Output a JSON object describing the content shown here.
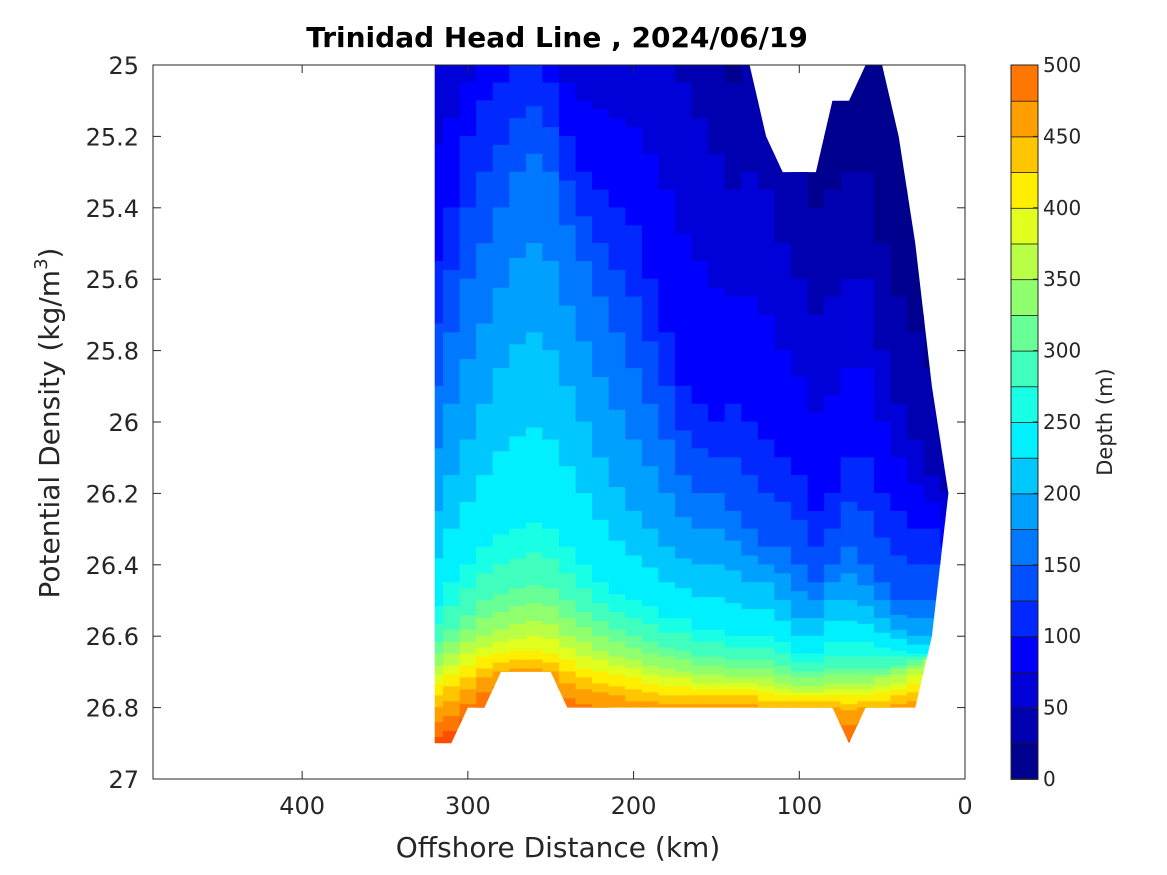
{
  "chart_data": {
    "type": "contour",
    "title": "Trinidad Head Line , 2024/06/19",
    "xlabel": "Offshore Distance (km)",
    "ylabel": "Potential Density (kg/m3)",
    "ylabel_main": "Potential Density (kg/m",
    "ylabel_sup": "3",
    "ylabel_close": ")",
    "xlim": [
      490,
      0
    ],
    "ylim": [
      25,
      27
    ],
    "x_reversed": true,
    "y_reversed": true,
    "x_ticks": [
      400,
      300,
      200,
      100,
      0
    ],
    "y_ticks": [
      25,
      25.2,
      25.4,
      25.6,
      25.8,
      26,
      26.2,
      26.4,
      26.6,
      26.8,
      27
    ],
    "x_tick_labels": [
      "400",
      "300",
      "200",
      "100",
      "0"
    ],
    "y_tick_labels": [
      "25",
      "25.2",
      "25.4",
      "25.6",
      "25.8",
      "26",
      "26.2",
      "26.4",
      "26.6",
      "26.8",
      "27"
    ],
    "colorbar": {
      "label": "Depth (m)",
      "min": 0,
      "max": 500,
      "tick_values": [
        0,
        50,
        100,
        150,
        200,
        250,
        300,
        350,
        400,
        450,
        500
      ],
      "tick_labels": [
        "0",
        "50",
        "100",
        "150",
        "200",
        "250",
        "300",
        "350",
        "400",
        "450",
        "500"
      ],
      "level_step": 25,
      "colors": [
        "#00008f",
        "#0000b0",
        "#0000d9",
        "#0000ff",
        "#0028ff",
        "#0050ff",
        "#0078ff",
        "#00a0ff",
        "#00c8ff",
        "#00f0ff",
        "#18ffe6",
        "#40ffbe",
        "#68ff96",
        "#90ff6e",
        "#b8ff46",
        "#e0ff1e",
        "#ffee00",
        "#ffc600",
        "#ff9e00",
        "#ff7600",
        "#ff4e00",
        "#ff2600",
        "#ff0000",
        "#d80000",
        "#b00000"
      ]
    },
    "stations_km": [
      320,
      310,
      300,
      290,
      280,
      270,
      260,
      250,
      240,
      230,
      220,
      210,
      200,
      190,
      180,
      170,
      160,
      150,
      140,
      130,
      120,
      110,
      100,
      90,
      80,
      70,
      60,
      50,
      40,
      30,
      20,
      10
    ],
    "density_bottom": [
      26.9,
      26.9,
      26.8,
      26.8,
      26.7,
      26.7,
      26.7,
      26.7,
      26.8,
      26.8,
      26.8,
      26.8,
      26.8,
      26.8,
      26.8,
      26.8,
      26.8,
      26.8,
      26.8,
      26.8,
      26.8,
      26.8,
      26.8,
      26.8,
      26.8,
      26.9,
      26.8,
      26.8,
      26.8,
      26.8,
      26.6,
      26.2
    ],
    "density_top": [
      25.0,
      25.0,
      25.0,
      25.0,
      25.0,
      25.0,
      25.0,
      25.0,
      25.0,
      25.0,
      25.0,
      25.0,
      25.0,
      25.0,
      25.0,
      25.0,
      25.0,
      25.0,
      25.0,
      25.0,
      25.2,
      25.3,
      25.3,
      25.3,
      25.1,
      25.1,
      25.0,
      25.0,
      25.2,
      25.5,
      25.9,
      26.2
    ],
    "depth_isolines": [
      {
        "depth": 50,
        "density": [
          24.9,
          24.9,
          24.9,
          24.9,
          24.9,
          24.9,
          24.9,
          24.9,
          24.9,
          24.9,
          24.9,
          24.9,
          24.9,
          24.9,
          24.95,
          25.05,
          25.15,
          25.25,
          25.35,
          25.3,
          25.35,
          25.5,
          25.6,
          25.7,
          25.65,
          25.6,
          25.6,
          25.8,
          25.95,
          26.05,
          26.15,
          26.2
        ]
      },
      {
        "depth": 100,
        "density": [
          25.55,
          25.4,
          25.2,
          25.1,
          25.05,
          25.0,
          24.98,
          25.05,
          25.2,
          25.3,
          25.35,
          25.4,
          25.45,
          25.6,
          25.75,
          25.9,
          25.95,
          26.0,
          25.95,
          26.0,
          26.05,
          26.1,
          26.15,
          26.25,
          26.2,
          26.1,
          26.1,
          26.2,
          26.25,
          26.3,
          26.3,
          26.35
        ]
      },
      {
        "depth": 150,
        "density": [
          25.9,
          25.75,
          25.6,
          25.5,
          25.4,
          25.3,
          25.25,
          25.3,
          25.45,
          25.55,
          25.65,
          25.75,
          25.85,
          25.95,
          26.05,
          26.15,
          26.2,
          26.2,
          26.25,
          26.3,
          26.35,
          26.35,
          26.4,
          26.45,
          26.4,
          26.35,
          26.4,
          26.45,
          26.5,
          26.5,
          26.5,
          26.5
        ]
      },
      {
        "depth": 200,
        "density": [
          26.25,
          26.15,
          26.05,
          25.95,
          25.85,
          25.78,
          25.75,
          25.8,
          25.9,
          26.0,
          26.1,
          26.18,
          26.25,
          26.3,
          26.35,
          26.38,
          26.4,
          26.4,
          26.42,
          26.45,
          26.45,
          26.5,
          26.55,
          26.55,
          26.5,
          26.5,
          26.52,
          26.55,
          26.58,
          26.6,
          26.6,
          26.6
        ]
      },
      {
        "depth": 250,
        "density": [
          26.52,
          26.45,
          26.4,
          26.35,
          26.32,
          26.3,
          26.28,
          26.3,
          26.35,
          26.4,
          26.45,
          26.48,
          26.5,
          26.52,
          26.55,
          26.55,
          26.58,
          26.58,
          26.6,
          26.6,
          26.6,
          26.62,
          26.65,
          26.65,
          26.62,
          26.62,
          26.62,
          26.63,
          26.64,
          26.65,
          26.65,
          26.65
        ]
      },
      {
        "depth": 300,
        "density": [
          26.62,
          26.58,
          26.54,
          26.5,
          26.48,
          26.47,
          26.46,
          26.47,
          26.5,
          26.53,
          26.56,
          26.58,
          26.6,
          26.62,
          26.63,
          26.64,
          26.66,
          26.66,
          26.67,
          26.67,
          26.67,
          26.68,
          26.7,
          26.7,
          26.69,
          26.69,
          26.69,
          26.69,
          26.68,
          26.67,
          26.66,
          26.66
        ]
      },
      {
        "depth": 350,
        "density": [
          26.68,
          26.65,
          26.62,
          26.6,
          26.58,
          26.57,
          26.56,
          26.57,
          26.6,
          26.62,
          26.64,
          26.66,
          26.67,
          26.68,
          26.69,
          26.7,
          26.71,
          26.71,
          26.72,
          26.72,
          26.72,
          26.73,
          26.74,
          26.74,
          26.73,
          26.73,
          26.73,
          26.72,
          26.71,
          26.69,
          26.67,
          26.67
        ]
      },
      {
        "depth": 400,
        "density": [
          26.73,
          26.71,
          26.68,
          26.66,
          26.65,
          26.64,
          26.64,
          26.65,
          26.67,
          26.69,
          26.7,
          26.71,
          26.72,
          26.73,
          26.74,
          26.74,
          26.75,
          26.75,
          26.75,
          26.75,
          26.76,
          26.77,
          26.77,
          26.77,
          26.77,
          26.77,
          26.77,
          26.76,
          26.75,
          26.73,
          26.7,
          26.7
        ]
      },
      {
        "depth": 450,
        "density": [
          26.8,
          26.78,
          26.75,
          26.72,
          26.7,
          26.69,
          26.69,
          26.7,
          26.73,
          26.75,
          26.76,
          26.77,
          26.78,
          26.78,
          26.79,
          26.79,
          26.79,
          26.79,
          26.79,
          26.79,
          26.8,
          26.8,
          26.8,
          26.8,
          26.8,
          26.81,
          26.8,
          26.8,
          26.79,
          26.78,
          26.76,
          26.76
        ]
      }
    ]
  }
}
